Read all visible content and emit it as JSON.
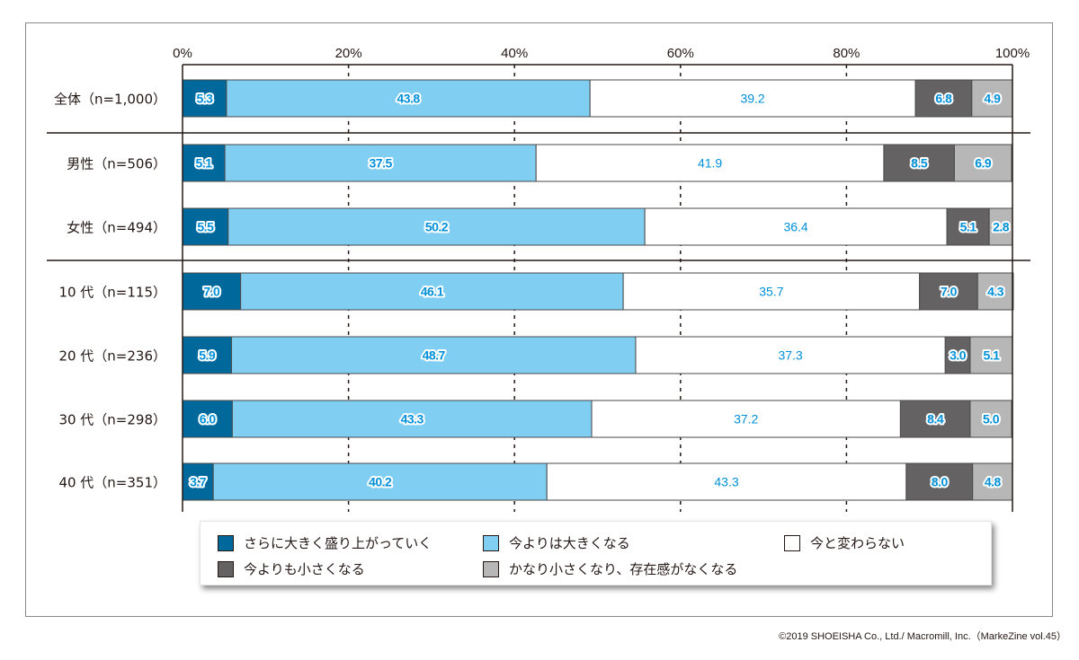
{
  "chart_data": {
    "type": "bar",
    "orientation": "horizontal",
    "stacked": true,
    "percent_stacked": true,
    "xlim": [
      0,
      100
    ],
    "ticks": [
      "0%",
      "20%",
      "40%",
      "60%",
      "80%",
      "100%"
    ],
    "tick_values": [
      0,
      20,
      40,
      60,
      80,
      100
    ],
    "grid": "dashed vertical",
    "legend_position": "bottom",
    "categories": [
      "全体（n=1,000）",
      "男性（n=506）",
      "女性（n=494）",
      "10 代（n=115）",
      "20 代（n=236）",
      "30 代（n=298）",
      "40 代（n=351）"
    ],
    "group_separators_after": [
      0,
      2
    ],
    "series": [
      {
        "name": "さらに大きく盛り上がっていく",
        "color": "#00689a",
        "values": [
          5.3,
          5.1,
          5.5,
          7.0,
          5.9,
          6.0,
          3.7
        ]
      },
      {
        "name": "今よりは大きくなる",
        "color": "#80cef2",
        "values": [
          43.8,
          37.5,
          50.2,
          46.1,
          48.7,
          43.3,
          40.2
        ]
      },
      {
        "name": "今と変わらない",
        "color": "#ffffff",
        "values": [
          39.2,
          41.9,
          36.4,
          35.7,
          37.3,
          37.2,
          43.3
        ]
      },
      {
        "name": "今よりも小さくなる",
        "color": "#646262",
        "values": [
          6.8,
          8.5,
          5.1,
          7.0,
          3.0,
          8.4,
          8.0
        ]
      },
      {
        "name": "かなり小さくなり、存在感がなくなる",
        "color": "#b7b7b7",
        "values": [
          4.9,
          6.9,
          2.8,
          4.3,
          5.1,
          5.0,
          4.8
        ]
      }
    ],
    "value_labels": [
      [
        "5.3",
        "43.8",
        "39.2",
        "6.8",
        "4.9"
      ],
      [
        "5.1",
        "37.5",
        "41.9",
        "8.5",
        "6.9"
      ],
      [
        "5.5",
        "50.2",
        "36.4",
        "5.1",
        "2.8"
      ],
      [
        "7.0",
        "46.1",
        "35.7",
        "7.0",
        "4.3"
      ],
      [
        "5.9",
        "48.7",
        "37.3",
        "3.0",
        "5.1"
      ],
      [
        "6.0",
        "43.3",
        "37.2",
        "8.4",
        "5.0"
      ],
      [
        "3.7",
        "40.2",
        "43.3",
        "8.0",
        "4.8"
      ]
    ],
    "label_color": "#0090d8",
    "title": "",
    "xlabel": "",
    "ylabel": ""
  },
  "legend": {
    "items": [
      {
        "label": "さらに大きく盛り上がっていく",
        "color": "#00689a"
      },
      {
        "label": "今よりは大きくなる",
        "color": "#80cef2"
      },
      {
        "label": "今と変わらない",
        "color": "#ffffff"
      },
      {
        "label": "今よりも小さくなる",
        "color": "#646262"
      },
      {
        "label": "かなり小さくなり、存在感がなくなる",
        "color": "#b7b7b7"
      }
    ]
  },
  "footer": {
    "copyright": "©2019 SHOEISHA Co., Ltd./ Macromill, Inc.（MarkeZine vol.45）"
  }
}
